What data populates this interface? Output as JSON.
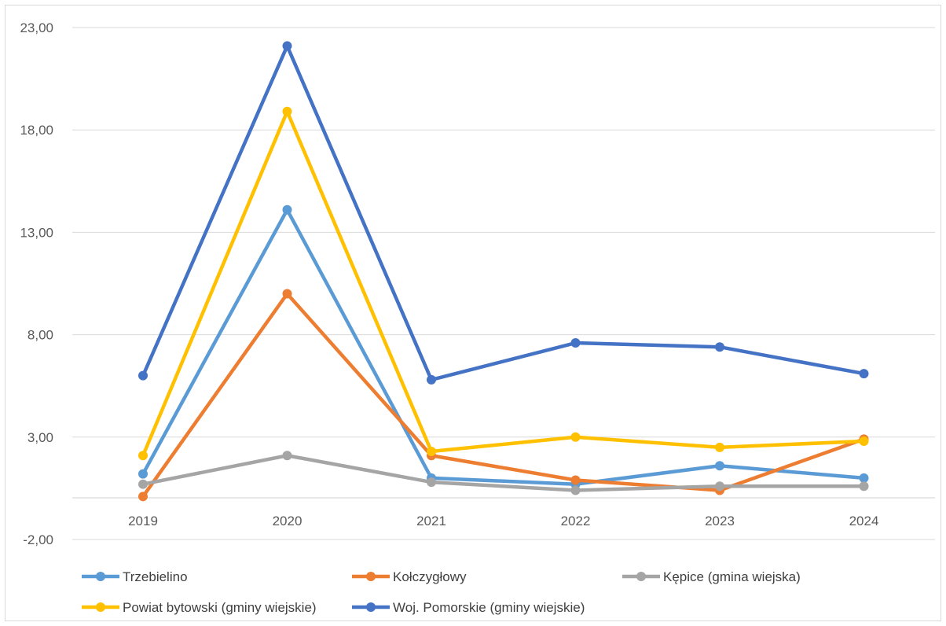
{
  "chart_data": {
    "type": "line",
    "categories": [
      "2019",
      "2020",
      "2021",
      "2022",
      "2023",
      "2024"
    ],
    "y_ticks": [
      "23,00",
      "18,00",
      "13,00",
      "8,00",
      "3,00",
      "-2,00"
    ],
    "y_tick_values": [
      23,
      18,
      13,
      8,
      3,
      -2
    ],
    "ylim": [
      -2,
      23
    ],
    "grid": true,
    "legend_position": "bottom",
    "series": [
      {
        "name": "Trzebielino",
        "color": "#5B9BD5",
        "values": [
          1.2,
          14.1,
          1.0,
          0.7,
          1.6,
          1.0
        ]
      },
      {
        "name": "Kołczygłowy",
        "color": "#ED7D31",
        "values": [
          0.1,
          10.0,
          2.1,
          0.9,
          0.4,
          2.9
        ]
      },
      {
        "name": "Kępice (gmina wiejska)",
        "color": "#A5A5A5",
        "values": [
          0.7,
          2.1,
          0.8,
          0.4,
          0.6,
          0.6
        ]
      },
      {
        "name": "Powiat bytowski (gminy wiejskie)",
        "color": "#FFC000",
        "values": [
          2.1,
          18.9,
          2.3,
          3.0,
          2.5,
          2.8
        ]
      },
      {
        "name": "Woj. Pomorskie (gminy wiejskie)",
        "color": "#4472C4",
        "values": [
          6.0,
          22.1,
          5.8,
          7.6,
          7.4,
          6.1
        ]
      }
    ]
  }
}
